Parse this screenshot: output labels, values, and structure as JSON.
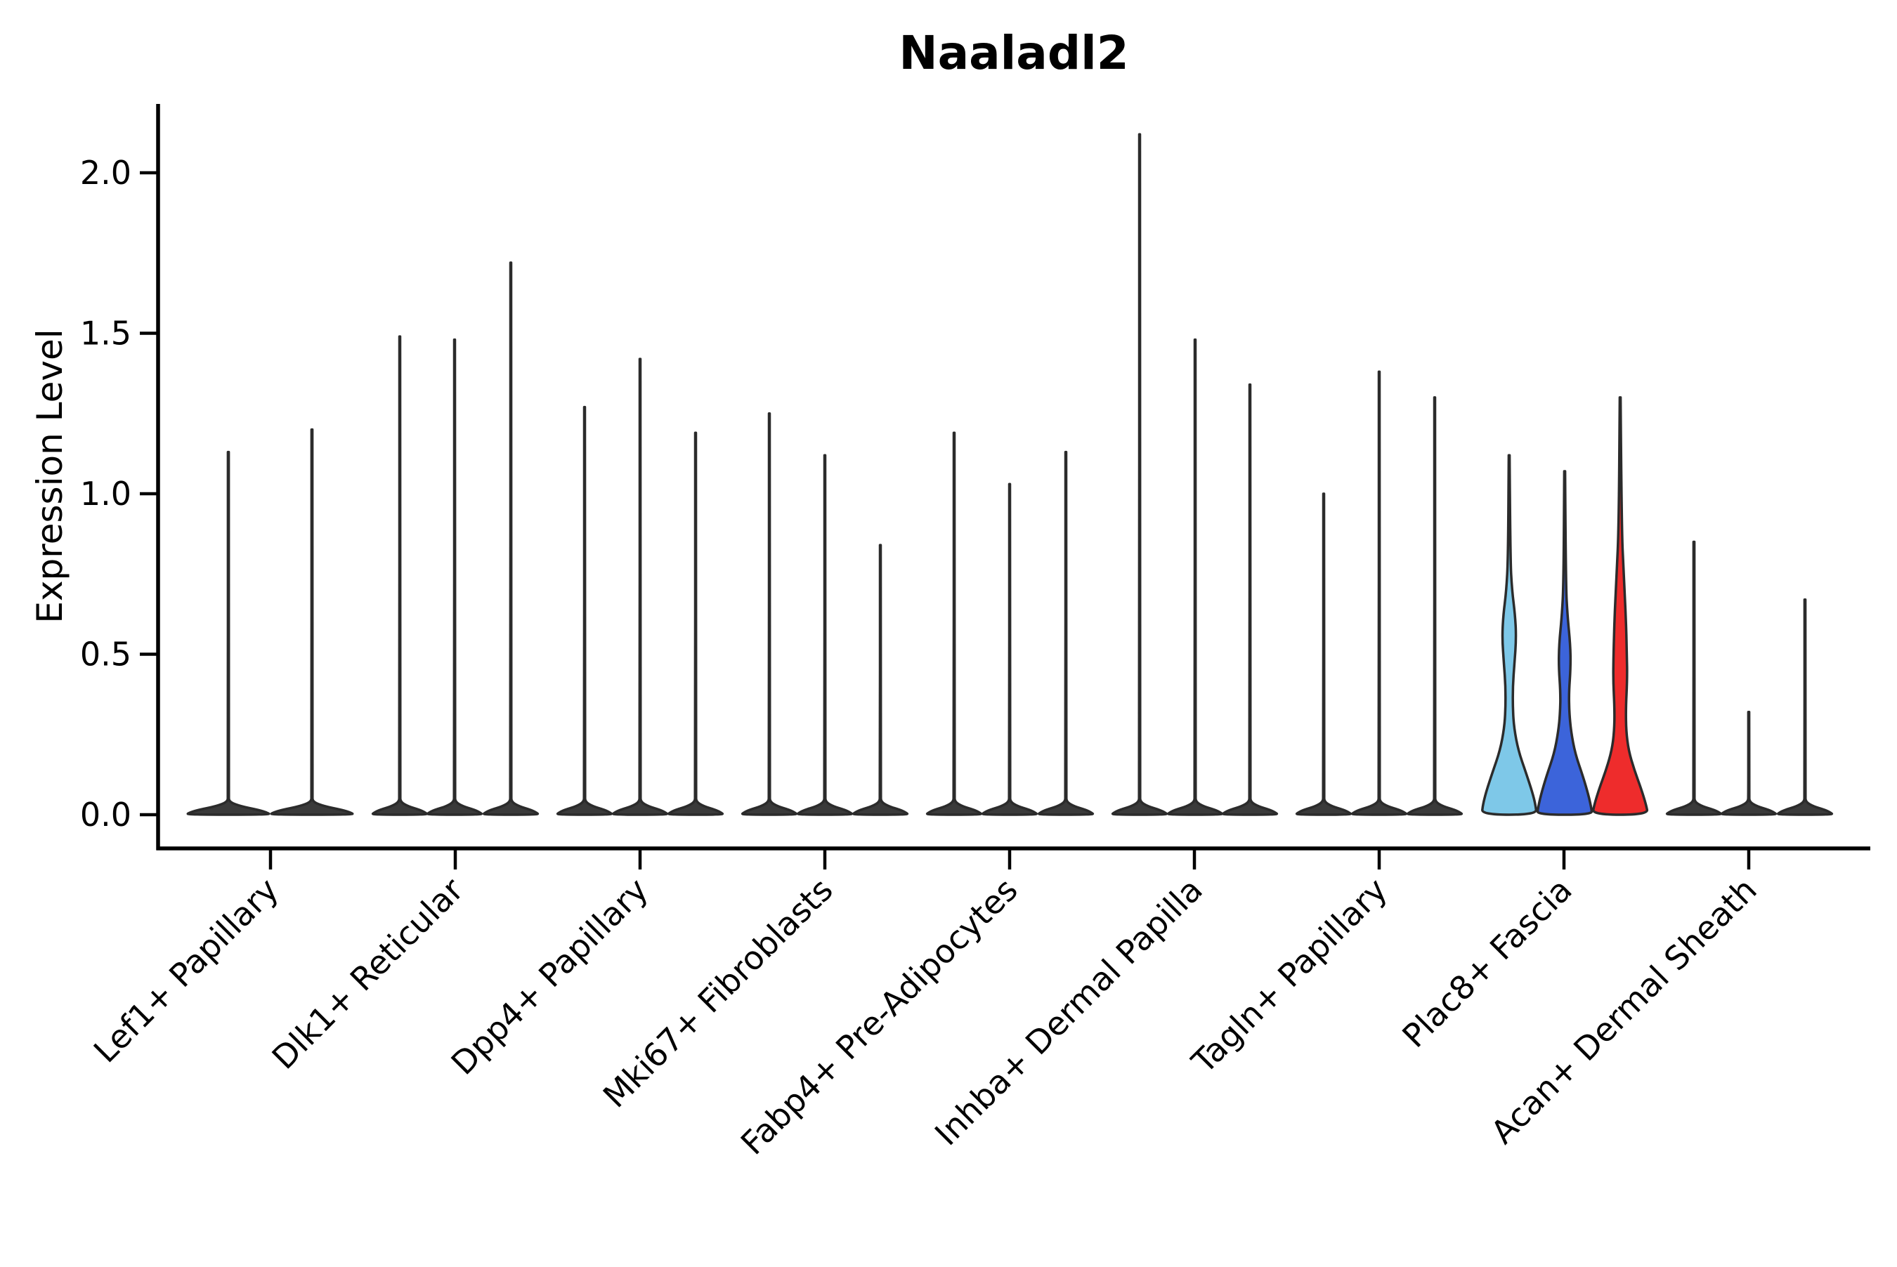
{
  "title": "Naaladl2",
  "chart_data": {
    "type": "violin",
    "title": "Naaladl2",
    "xlabel": "",
    "ylabel": "Expression Level",
    "ytick_labels": [
      "0.0",
      "0.5",
      "1.0",
      "1.5",
      "2.0"
    ],
    "ytick_values": [
      0.0,
      0.5,
      1.0,
      1.5,
      2.0
    ],
    "ylim": [
      -0.105,
      2.215
    ],
    "grid": false,
    "legend": "none",
    "background": "#ffffff",
    "axis_color": "#000000",
    "outline_color": "#2b2b2b",
    "default_violin_fill": "#3a3a3a",
    "highlight_colors": [
      "#7EC8E8",
      "#3C64DA",
      "#EE2C2C"
    ],
    "categories": [
      "Lef1+ Papillary",
      "Dlk1+ Reticular",
      "Dpp4+ Papillary",
      "Mki67+ Fibroblasts",
      "Fabp4+ Pre-Adipocytes",
      "Inhba+ Dermal Papilla",
      "Tagln+ Papillary",
      "Plac8+ Fascia",
      "Acan+ Dermal Sheath"
    ],
    "groups": [
      {
        "label": "Lef1+ Papillary",
        "tick_x": 385,
        "violins": [
          {
            "x": 325,
            "max": 1.13,
            "halfwidth": 59.5,
            "fill": "#3a3a3a"
          },
          {
            "x": 444,
            "max": 1.2,
            "halfwidth": 59.5,
            "fill": "#3a3a3a"
          }
        ]
      },
      {
        "label": "Dlk1+ Reticular",
        "tick_x": 648,
        "violins": [
          {
            "x": 569,
            "max": 1.49,
            "halfwidth": 39.5,
            "fill": "#3a3a3a"
          },
          {
            "x": 647,
            "max": 1.48,
            "halfwidth": 39.5,
            "fill": "#3a3a3a"
          },
          {
            "x": 727,
            "max": 1.72,
            "halfwidth": 39.5,
            "fill": "#3a3a3a"
          }
        ]
      },
      {
        "label": "Dpp4+ Papillary",
        "tick_x": 911,
        "violins": [
          {
            "x": 832,
            "max": 1.27,
            "halfwidth": 39.5,
            "fill": "#3a3a3a"
          },
          {
            "x": 911,
            "max": 1.42,
            "halfwidth": 39.5,
            "fill": "#3a3a3a"
          },
          {
            "x": 990,
            "max": 1.19,
            "halfwidth": 39.5,
            "fill": "#3a3a3a"
          }
        ]
      },
      {
        "label": "Mki67+ Fibroblasts",
        "tick_x": 1174,
        "violins": [
          {
            "x": 1095,
            "max": 1.25,
            "halfwidth": 39.5,
            "fill": "#3a3a3a"
          },
          {
            "x": 1174,
            "max": 1.12,
            "halfwidth": 39.5,
            "fill": "#3a3a3a"
          },
          {
            "x": 1253,
            "max": 0.84,
            "halfwidth": 39.5,
            "fill": "#3a3a3a"
          }
        ]
      },
      {
        "label": "Fabp4+ Pre-Adipocytes",
        "tick_x": 1437,
        "violins": [
          {
            "x": 1358,
            "max": 1.19,
            "halfwidth": 39.5,
            "fill": "#3a3a3a"
          },
          {
            "x": 1437,
            "max": 1.03,
            "halfwidth": 39.5,
            "fill": "#3a3a3a"
          },
          {
            "x": 1517,
            "max": 1.13,
            "halfwidth": 39.5,
            "fill": "#3a3a3a"
          }
        ]
      },
      {
        "label": "Inhba+ Dermal Papilla",
        "tick_x": 1700,
        "violins": [
          {
            "x": 1622,
            "max": 2.12,
            "halfwidth": 39.5,
            "fill": "#3a3a3a"
          },
          {
            "x": 1701,
            "max": 1.48,
            "halfwidth": 39.5,
            "fill": "#3a3a3a"
          },
          {
            "x": 1779,
            "max": 1.34,
            "halfwidth": 39.5,
            "fill": "#3a3a3a"
          }
        ]
      },
      {
        "label": "Tagln+ Papillary",
        "tick_x": 1963,
        "violins": [
          {
            "x": 1884,
            "max": 1.0,
            "halfwidth": 39.5,
            "fill": "#3a3a3a"
          },
          {
            "x": 1963,
            "max": 1.38,
            "halfwidth": 39.5,
            "fill": "#3a3a3a"
          },
          {
            "x": 2042,
            "max": 1.3,
            "halfwidth": 39.5,
            "fill": "#3a3a3a"
          }
        ]
      },
      {
        "label": "Plac8+ Fascia",
        "tick_x": 2226,
        "violins": [
          {
            "x": 2148,
            "max": 1.12,
            "halfwidth": 39.5,
            "fill": "#7EC8E8",
            "profile": [
              [
                1.12,
                0.6
              ],
              [
                0.8,
                1.6
              ],
              [
                0.7,
                4.0
              ],
              [
                0.62,
                8.5
              ],
              [
                0.55,
                10.0
              ],
              [
                0.47,
                7.5
              ],
              [
                0.4,
                5.2
              ],
              [
                0.33,
                5.2
              ],
              [
                0.27,
                7.0
              ],
              [
                0.2,
                13.0
              ],
              [
                0.13,
                24.0
              ],
              [
                0.07,
                33.0
              ],
              [
                0.03,
                37.5
              ],
              [
                0.0,
                39.0
              ]
            ]
          },
          {
            "x": 2227,
            "max": 1.07,
            "halfwidth": 39.5,
            "fill": "#3C64DA",
            "profile": [
              [
                1.07,
                0.6
              ],
              [
                0.72,
                1.6
              ],
              [
                0.62,
                4.0
              ],
              [
                0.53,
                8.0
              ],
              [
                0.46,
                8.5
              ],
              [
                0.38,
                6.0
              ],
              [
                0.32,
                6.5
              ],
              [
                0.26,
                9.0
              ],
              [
                0.19,
                15.0
              ],
              [
                0.12,
                26.0
              ],
              [
                0.06,
                34.0
              ],
              [
                0.02,
                38.0
              ],
              [
                0.0,
                39.0
              ]
            ]
          },
          {
            "x": 2306,
            "max": 1.3,
            "halfwidth": 39.5,
            "fill": "#EE2C2C",
            "profile": [
              [
                1.3,
                0.6
              ],
              [
                0.9,
                2.0
              ],
              [
                0.75,
                5.0
              ],
              [
                0.62,
                8.0
              ],
              [
                0.5,
                9.5
              ],
              [
                0.42,
                10.0
              ],
              [
                0.33,
                8.0
              ],
              [
                0.26,
                8.5
              ],
              [
                0.2,
                12.0
              ],
              [
                0.14,
                20.0
              ],
              [
                0.08,
                30.0
              ],
              [
                0.03,
                37.0
              ],
              [
                0.0,
                39.5
              ]
            ]
          }
        ]
      },
      {
        "label": "Acan+ Dermal Sheath",
        "tick_x": 2489,
        "violins": [
          {
            "x": 2411,
            "max": 0.85,
            "halfwidth": 39.5,
            "fill": "#3a3a3a"
          },
          {
            "x": 2489,
            "max": 0.32,
            "halfwidth": 39.5,
            "fill": "#3a3a3a"
          },
          {
            "x": 2569,
            "max": 0.67,
            "halfwidth": 39.5,
            "fill": "#3a3a3a"
          }
        ]
      }
    ]
  }
}
